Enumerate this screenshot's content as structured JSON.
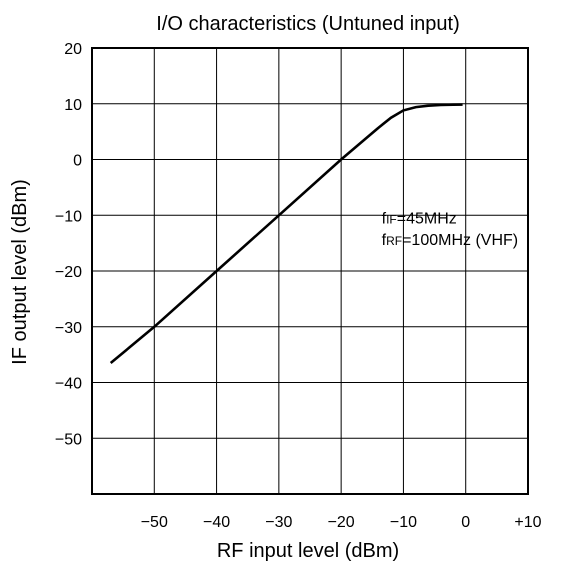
{
  "chart_data": {
    "type": "line",
    "title": "I/O characteristics (Untuned input)",
    "xlabel": "RF input level (dBm)",
    "ylabel": "IF output level (dBm)",
    "xlim": [
      -60,
      10
    ],
    "ylim": [
      -60,
      20
    ],
    "x_ticks": [
      -50,
      -40,
      -30,
      -20,
      -10,
      0,
      10
    ],
    "x_tick_labels": [
      "−50",
      "−40",
      "−30",
      "−20",
      "−10",
      "0",
      "+10"
    ],
    "y_ticks": [
      20,
      10,
      0,
      -10,
      -20,
      -30,
      -40,
      -50
    ],
    "y_tick_labels": [
      "20",
      "10",
      "0",
      "−10",
      "−20",
      "−30",
      "−40",
      "−50"
    ],
    "grid": true,
    "series": [
      {
        "x": [
          -57,
          -50,
          -40,
          -30,
          -20,
          -16,
          -14,
          -12,
          -10,
          -8,
          -6,
          -4,
          -2,
          -0.5
        ],
        "y": [
          -36.5,
          -30,
          -20,
          -10,
          0,
          3.8,
          5.7,
          7.5,
          8.8,
          9.4,
          9.65,
          9.78,
          9.83,
          9.85
        ]
      }
    ],
    "annotations": [
      {
        "prefix": "f",
        "sub": "IF",
        "text": "=45MHz"
      },
      {
        "prefix": "f",
        "sub": "RF",
        "text": "=100MHz (VHF)"
      }
    ]
  }
}
